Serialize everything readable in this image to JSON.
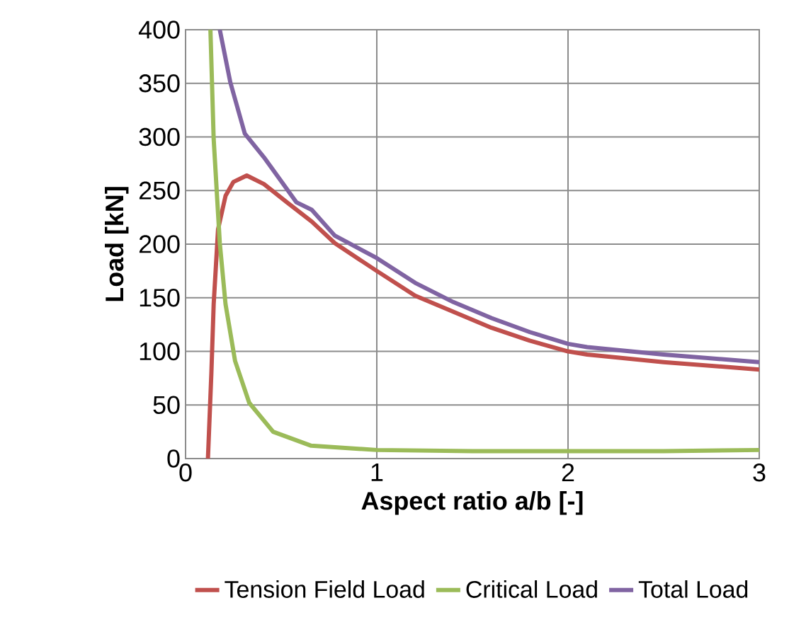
{
  "chart_data": {
    "type": "line",
    "xlabel": "Aspect ratio a/b [-]",
    "ylabel": "Load [kN]",
    "xlim": [
      0,
      3
    ],
    "ylim": [
      0,
      400
    ],
    "xticks": [
      0,
      1,
      2,
      3
    ],
    "yticks": [
      0,
      50,
      100,
      150,
      200,
      250,
      300,
      350,
      400
    ],
    "grid": true,
    "legend": "bottom",
    "marker": "none",
    "line_style": "solid",
    "series": [
      {
        "name": "Tension Field Load",
        "color": "#c0504d",
        "x": [
          0.117,
          0.135,
          0.147,
          0.17,
          0.209,
          0.25,
          0.32,
          0.41,
          0.53,
          0.66,
          0.78,
          1.0,
          1.2,
          1.4,
          1.6,
          1.8,
          2.0,
          2.1,
          2.5,
          3.0
        ],
        "values": [
          0,
          80,
          144,
          214,
          245,
          258,
          264,
          256,
          239,
          221,
          201,
          175,
          152,
          137,
          122,
          110,
          100,
          97,
          90,
          83
        ]
      },
      {
        "name": "Critical Load",
        "color": "#9bbb59",
        "x": [
          0.13,
          0.147,
          0.179,
          0.209,
          0.259,
          0.333,
          0.458,
          0.657,
          1.0,
          1.5,
          2.0,
          2.5,
          3.0
        ],
        "values": [
          400,
          298,
          201,
          144,
          91,
          52,
          25,
          12,
          8,
          7,
          7,
          7,
          8
        ]
      },
      {
        "name": "Total Load",
        "color": "#8064a2",
        "x": [
          0.179,
          0.234,
          0.31,
          0.41,
          0.58,
          0.66,
          0.78,
          1.0,
          1.2,
          1.4,
          1.6,
          1.8,
          2.0,
          2.1,
          2.5,
          3.0
        ],
        "values": [
          400,
          351,
          303,
          281,
          239,
          232,
          208,
          187,
          164,
          146,
          131,
          118,
          107,
          104,
          97,
          90
        ]
      }
    ]
  }
}
